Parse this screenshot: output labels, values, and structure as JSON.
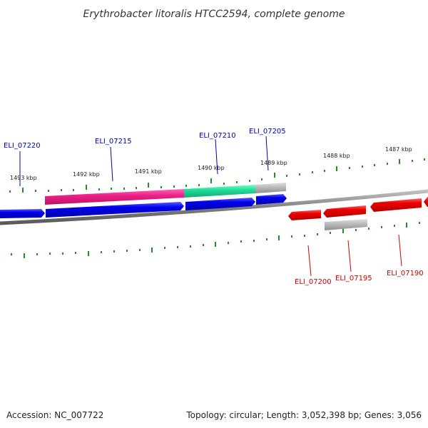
{
  "title": "Erythrobacter litoralis HTCC2594, complete genome",
  "footer": {
    "accession": "Accession: NC_007722",
    "summary": "Topology: circular; Length: 3,052,398 bp; Genes: 3,056"
  },
  "colors": {
    "forward_gene": "#0000ee",
    "reverse_gene": "#ee0000",
    "magenta_feature": "#ee2288",
    "green_feature": "#22dd99",
    "grey_feature": "#b8b8b8",
    "backbone": "#888888",
    "tick": "#2a8a2a",
    "forward_label": "#0000aa",
    "reverse_label": "#cc0000"
  },
  "scale_labels": [
    "1493 kbp",
    "1492 kbp",
    "1491 kbp",
    "1490 kbp",
    "1489 kbp",
    "1488 kbp",
    "1487 kbp"
  ],
  "forward_genes": [
    "ELI_07220",
    "ELI_07215",
    "ELI_07210",
    "ELI_07205"
  ],
  "reverse_genes": [
    "ELI_07200",
    "ELI_07195",
    "ELI_07190"
  ]
}
